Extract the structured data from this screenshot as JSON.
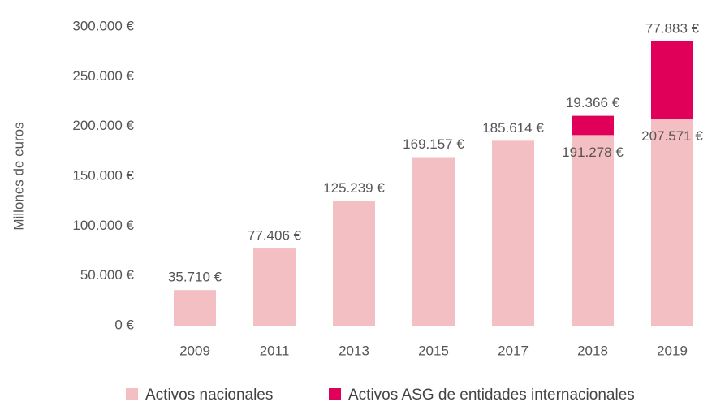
{
  "chart_data": {
    "type": "stacked_bar",
    "y_label": "Millones de euros",
    "categories": [
      "2009",
      "2011",
      "2013",
      "2015",
      "2017",
      "2018",
      "2019"
    ],
    "series": [
      {
        "name": "Activos nacionales",
        "color": "#f4bfc2",
        "values": [
          35710,
          77406,
          125239,
          169157,
          185614,
          191278,
          207571
        ],
        "value_labels": [
          "35.710 €",
          "77.406 €",
          "125.239 €",
          "169.157 €",
          "185.614 €",
          "191.278 €",
          "207.571 €"
        ]
      },
      {
        "name": "Activos ASG de entidades internacionales",
        "color": "#e0005a",
        "values": [
          null,
          null,
          null,
          null,
          null,
          19366,
          77883
        ],
        "value_labels": [
          null,
          null,
          null,
          null,
          null,
          "19.366 €",
          "77.883 €"
        ]
      }
    ],
    "ylim": [
      0,
      300000
    ],
    "yticks": [
      {
        "value": 0,
        "label": "0 €"
      },
      {
        "value": 50000,
        "label": "50.000 €"
      },
      {
        "value": 100000,
        "label": "100.000 €"
      },
      {
        "value": 150000,
        "label": "150.000 €"
      },
      {
        "value": 200000,
        "label": "200.000 €"
      },
      {
        "value": 250000,
        "label": "250.000 €"
      },
      {
        "value": 300000,
        "label": "300.000 €"
      }
    ],
    "legend": "bottom"
  }
}
